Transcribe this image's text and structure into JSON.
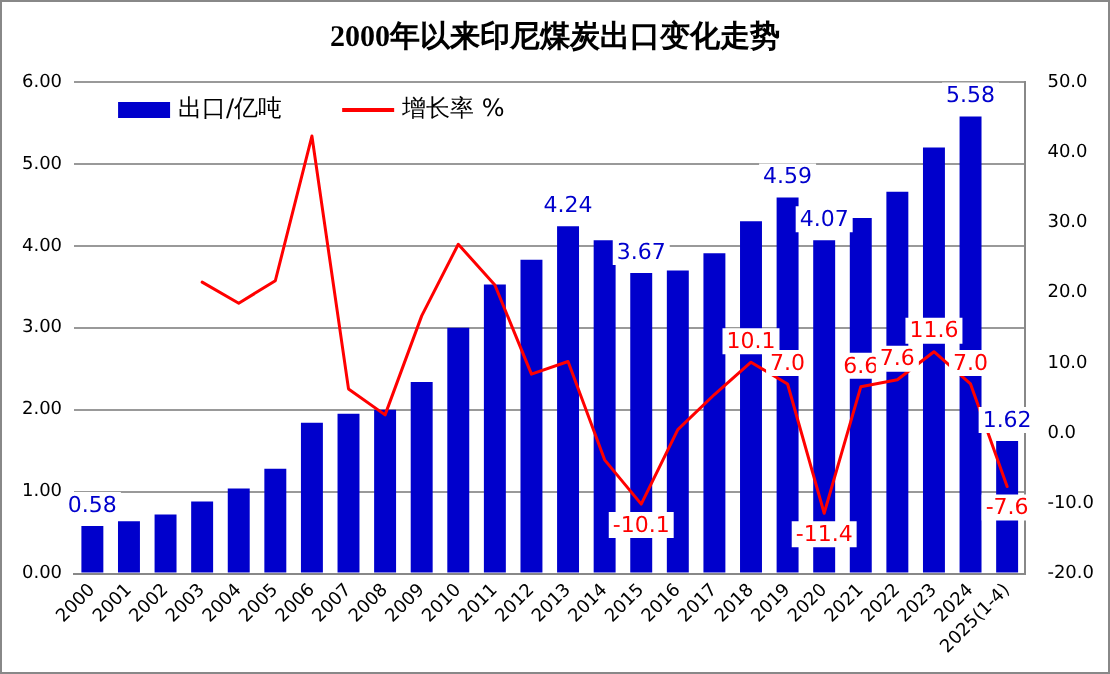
{
  "chart_data": {
    "type": "bar",
    "title": "2000年以来印尼煤炭出口变化走势",
    "categories": [
      "2000",
      "2001",
      "2002",
      "2003",
      "2004",
      "2005",
      "2006",
      "2007",
      "2008",
      "2009",
      "2010",
      "2011",
      "2012",
      "2013",
      "2014",
      "2015",
      "2016",
      "2017",
      "2018",
      "2019",
      "2020",
      "2021",
      "2022",
      "2023",
      "2024",
      "2025(1-4)"
    ],
    "series": [
      {
        "name": "出口/亿吨",
        "color": "#0000cc",
        "values": [
          0.58,
          0.64,
          0.72,
          0.88,
          1.04,
          1.28,
          1.84,
          1.95,
          2.0,
          2.34,
          3.0,
          3.53,
          3.83,
          4.24,
          4.07,
          3.67,
          3.7,
          3.91,
          4.3,
          4.59,
          4.07,
          4.34,
          4.66,
          5.2,
          5.58,
          1.62
        ],
        "value_labels": [
          "0.58",
          null,
          null,
          null,
          null,
          null,
          null,
          null,
          null,
          null,
          null,
          null,
          null,
          "4.24",
          null,
          "3.67",
          null,
          null,
          null,
          "4.59",
          "4.07",
          null,
          null,
          null,
          "5.58",
          "1.62"
        ]
      },
      {
        "name": "增长率 %",
        "type": "line",
        "axis": "y2",
        "color": "#ff0000",
        "values": [
          null,
          null,
          null,
          21.5,
          18.5,
          21.7,
          42.3,
          6.3,
          2.6,
          16.7,
          26.9,
          21.1,
          8.4,
          10.2,
          -3.8,
          -10.1,
          0.5,
          5.5,
          10.1,
          7.0,
          -11.4,
          6.6,
          7.6,
          11.6,
          7.0,
          -7.6
        ],
        "value_labels": [
          null,
          null,
          null,
          null,
          null,
          null,
          null,
          null,
          null,
          null,
          null,
          null,
          null,
          null,
          null,
          "-10.1",
          null,
          null,
          "10.1",
          "7.0",
          "-11.4",
          "6.6",
          "7.6",
          "11.6",
          "7.0",
          "-7.6"
        ]
      }
    ],
    "ylim": [
      0,
      6
    ],
    "yticks": [
      {
        "value": 0,
        "label": "0.00"
      },
      {
        "value": 1,
        "label": "1.00"
      },
      {
        "value": 2,
        "label": "2.00"
      },
      {
        "value": 3,
        "label": "3.00"
      },
      {
        "value": 4,
        "label": "4.00"
      },
      {
        "value": 5,
        "label": "5.00"
      },
      {
        "value": 6,
        "label": "6.00"
      }
    ],
    "y2lim": [
      -20,
      50
    ],
    "y2ticks": [
      {
        "value": -20,
        "label": "-20.0"
      },
      {
        "value": -10,
        "label": "-10.0"
      },
      {
        "value": 0,
        "label": "0.0"
      },
      {
        "value": 10,
        "label": "10.0"
      },
      {
        "value": 20,
        "label": "20.0"
      },
      {
        "value": 30,
        "label": "30.0"
      },
      {
        "value": 40,
        "label": "40.0"
      },
      {
        "value": 50,
        "label": "50.0"
      }
    ],
    "grid": "y",
    "legend": "top left",
    "marker": "none",
    "line_style": "solid"
  }
}
